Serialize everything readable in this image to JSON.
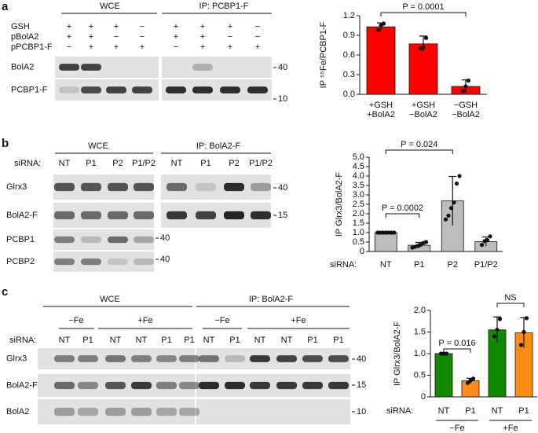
{
  "panel_labels": [
    "a",
    "b",
    "c"
  ],
  "blot_a": {
    "headers": [
      "WCE",
      "IP: PCBP1-F"
    ],
    "conditions": [
      {
        "label": "GSH",
        "signs": [
          "+",
          "+",
          "+",
          "−",
          "+",
          "+",
          "+",
          "−"
        ]
      },
      {
        "label": "pBolA2",
        "signs": [
          "+",
          "+",
          "−",
          "−",
          "+",
          "+",
          "−",
          "−"
        ]
      },
      {
        "label": "pPCBP1-F",
        "signs": [
          "−",
          "+",
          "+",
          "+",
          "−",
          "+",
          "+",
          "+"
        ]
      }
    ],
    "rows": [
      "BolA2",
      "PCBP1-F"
    ],
    "mw": [
      "40",
      "10"
    ]
  },
  "blot_b": {
    "headers": [
      "WCE",
      "IP: BolA2-F"
    ],
    "lane_title": "siRNA:",
    "lanes": [
      "NT",
      "P1",
      "P2",
      "P1/P2",
      "NT",
      "P1",
      "P2",
      "P1/P2"
    ],
    "rows": [
      "Glrx3",
      "BolA2-F",
      "PCBP1",
      "PCBP2"
    ],
    "mw": [
      "40",
      "15",
      "40",
      "40"
    ]
  },
  "blot_c": {
    "headers": [
      "WCE",
      "IP: BolA2-F"
    ],
    "groups": [
      "−Fe",
      "+Fe",
      "−Fe",
      "+Fe"
    ],
    "lane_title": "siRNA:",
    "lanes": [
      "NT",
      "P1",
      "NT",
      "NT",
      "P1",
      "P1",
      "NT",
      "P1",
      "NT",
      "NT",
      "P1",
      "P1"
    ],
    "rows": [
      "Glrx3",
      "BolA2-F",
      "BolA2"
    ],
    "mw": [
      "40",
      "15",
      "10"
    ]
  },
  "chart_data": [
    {
      "type": "bar",
      "ylabel": "IP ⁵⁵Fe/PCBP1-F",
      "categories": [
        [
          "+GSH",
          "+BolA2"
        ],
        [
          "+GSH",
          "−BolA2"
        ],
        [
          "−GSH",
          "−BolA2"
        ]
      ],
      "values": [
        1.03,
        0.77,
        0.12
      ],
      "errors": [
        0.06,
        0.12,
        0.1
      ],
      "points": [
        [
          0.98,
          1.05,
          1.08
        ],
        [
          0.7,
          0.72,
          0.86
        ],
        [
          0.05,
          0.12,
          0.21
        ]
      ],
      "colors": [
        "#ff0000",
        "#ff0000",
        "#ff0000"
      ],
      "ylim": [
        0,
        1.2
      ],
      "yticks": [
        {
          "value": 0,
          "label": "0.0"
        },
        0.3,
        0.6,
        0.9,
        1.2
      ],
      "annotations": [
        "P = 0.0001"
      ]
    },
    {
      "type": "bar",
      "ylabel": "IP Glrx3/BolA2-F",
      "xlabel": "siRNA:",
      "categories": [
        "NT",
        "P1",
        "P2",
        "P1/P2"
      ],
      "values": [
        1.0,
        0.33,
        2.68,
        0.52
      ],
      "errors": [
        0,
        0.15,
        1.3,
        0.25
      ],
      "points": [
        [
          1,
          1,
          1,
          1,
          1,
          1,
          1
        ],
        [
          0.2,
          0.25,
          0.3,
          0.35,
          0.45,
          0.5
        ],
        [
          1.7,
          1.9,
          2.3,
          2.6,
          3.6,
          4.0
        ],
        [
          0.35,
          0.55,
          0.6,
          0.8
        ]
      ],
      "colors": [
        "#bdbdbd",
        "#bdbdbd",
        "#bdbdbd",
        "#bdbdbd"
      ],
      "ylim": [
        0,
        5
      ],
      "yticks": [
        0,
        0.5,
        {
          "value": 1,
          "label": "1.0"
        },
        1.5,
        {
          "value": 2,
          "label": "2.0"
        },
        2.5,
        {
          "value": 3,
          "label": "3.0"
        },
        3.5,
        {
          "value": 4,
          "label": "4.0"
        },
        4.5,
        {
          "value": 5,
          "label": "5.0"
        }
      ],
      "annotations": [
        "P = 0.0002",
        "P = 0.024"
      ]
    },
    {
      "type": "bar",
      "ylabel": "IP Glrx3/BolA2-F",
      "xlabel": "siRNA:",
      "categories": [
        "NT",
        "P1",
        "NT",
        "P1"
      ],
      "groups": [
        "−Fe",
        "+Fe"
      ],
      "values": [
        1.0,
        0.37,
        1.55,
        1.48
      ],
      "errors": [
        0,
        0.06,
        0.3,
        0.35
      ],
      "points": [
        [
          1,
          1,
          1
        ],
        [
          0.32,
          0.38,
          0.42
        ],
        [
          1.4,
          1.55,
          1.8
        ],
        [
          1.2,
          1.5,
          1.82
        ]
      ],
      "colors": [
        "#128a00",
        "#ff8c1a",
        "#128a00",
        "#ff8c1a"
      ],
      "ylim": [
        0,
        2
      ],
      "yticks": [
        0,
        0.5,
        {
          "value": 1,
          "label": "1.0"
        },
        1.5,
        {
          "value": 2,
          "label": "2.0"
        }
      ],
      "annotations": [
        "P = 0.016",
        "NS"
      ]
    }
  ]
}
